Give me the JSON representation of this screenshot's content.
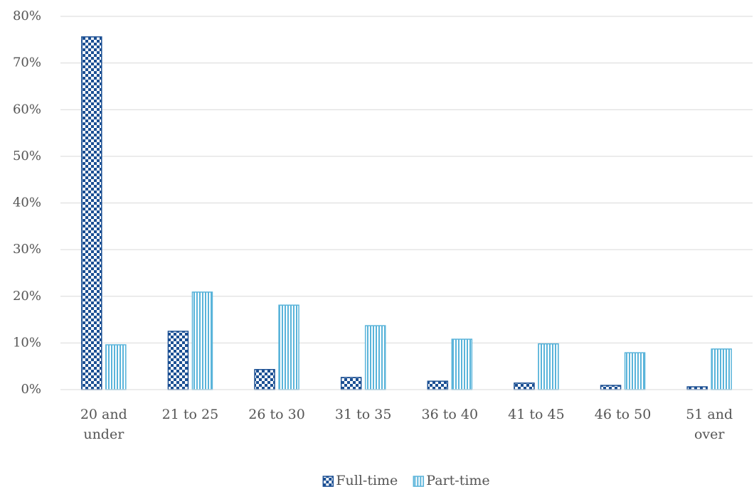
{
  "chart_data": {
    "type": "bar",
    "categories": [
      "20 and under",
      "21 to 25",
      "26 to 30",
      "31 to 35",
      "36 to 40",
      "41 to 45",
      "46 to 50",
      "51 and over"
    ],
    "series": [
      {
        "name": "Full-time",
        "color": "#1b4f93",
        "pattern": "checker",
        "values": [
          75.6,
          12.5,
          4.3,
          2.6,
          1.8,
          1.4,
          0.9,
          0.6
        ]
      },
      {
        "name": "Part-time",
        "color": "#5ab4da",
        "pattern": "stripes",
        "values": [
          9.6,
          20.9,
          18.1,
          13.7,
          10.8,
          9.8,
          7.9,
          8.7
        ]
      }
    ],
    "ylim": [
      0,
      80
    ],
    "yticks": [
      {
        "value": 0,
        "label": "0%"
      },
      {
        "value": 10,
        "label": "10%"
      },
      {
        "value": 20,
        "label": "20%"
      },
      {
        "value": 30,
        "label": "30%"
      },
      {
        "value": 40,
        "label": "40%"
      },
      {
        "value": 50,
        "label": "50%"
      },
      {
        "value": 60,
        "label": "60%"
      },
      {
        "value": 70,
        "label": "70%"
      },
      {
        "value": 80,
        "label": "80%"
      }
    ],
    "grid": true,
    "legend": "bottom"
  }
}
